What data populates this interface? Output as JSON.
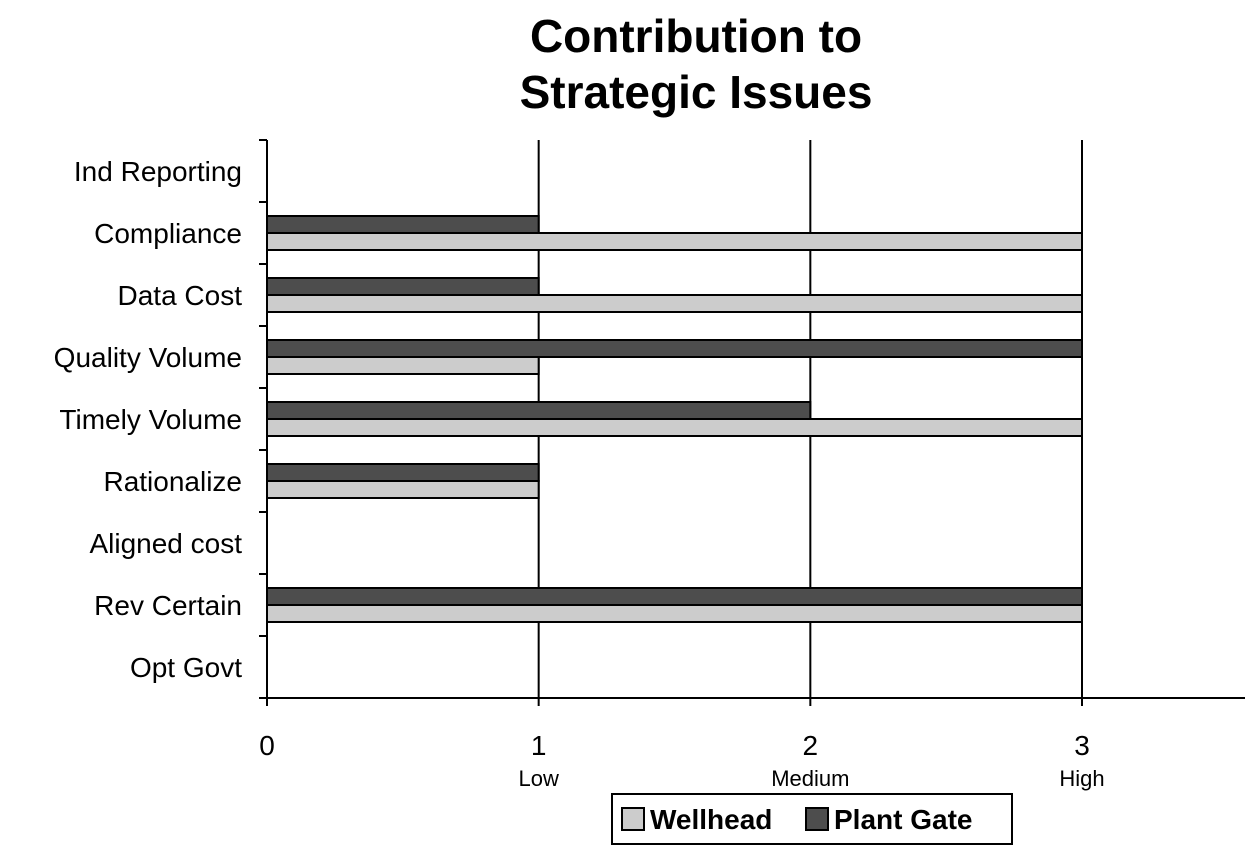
{
  "chart_data": {
    "type": "bar",
    "orientation": "horizontal",
    "title": [
      "Contribution to",
      "Strategic Issues"
    ],
    "categories": [
      "Ind Reporting",
      "Compliance",
      "Data Cost",
      "Quality Volume",
      "Timely Volume",
      "Rationalize",
      "Aligned cost",
      "Rev Certain",
      "Opt Govt"
    ],
    "series": [
      {
        "name": "Wellhead",
        "color": "#cccccc",
        "values": [
          0,
          3,
          3,
          1,
          3,
          1,
          0,
          3,
          0
        ]
      },
      {
        "name": "Plant Gate",
        "color": "#4d4d4d",
        "values": [
          0,
          1,
          1,
          3,
          2,
          1,
          0,
          3,
          0
        ]
      }
    ],
    "xlim": [
      0,
      3.6
    ],
    "x_ticks": [
      {
        "value": 0,
        "label": "0",
        "sublabel": ""
      },
      {
        "value": 1,
        "label": "1",
        "sublabel": "Low"
      },
      {
        "value": 2,
        "label": "2",
        "sublabel": "Medium"
      },
      {
        "value": 3,
        "label": "3",
        "sublabel": "High"
      }
    ],
    "grid": "vertical",
    "legend_position": "bottom"
  }
}
